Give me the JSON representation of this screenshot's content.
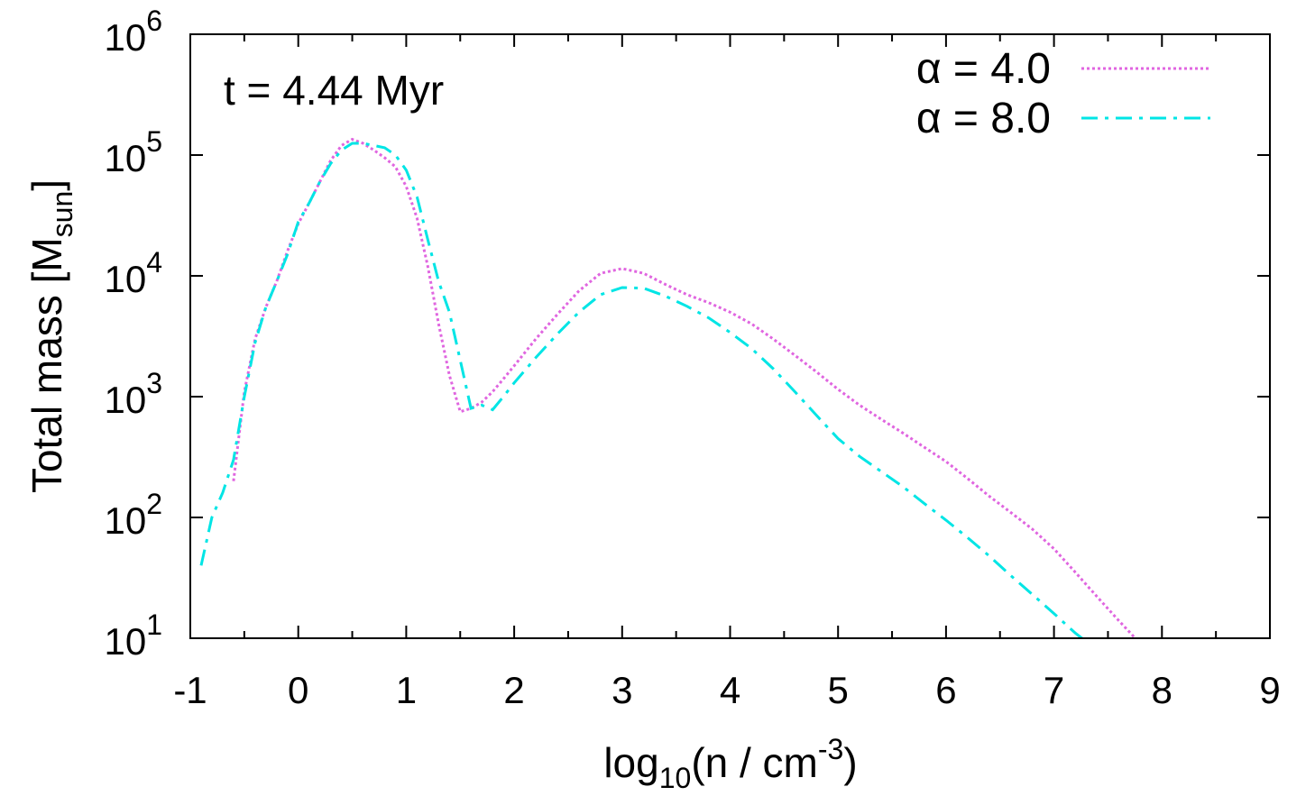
{
  "chart_data": {
    "type": "line",
    "annotation": "t = 4.44 Myr",
    "xlabel": {
      "base": "log",
      "sub": "10",
      "main": "(n / cm",
      "sup": "-3",
      "close": ")"
    },
    "ylabel": {
      "main": "Total mass [M",
      "sub": "sun",
      "close": "]"
    },
    "xlim": [
      -1,
      9
    ],
    "ylim": [
      10,
      1000000
    ],
    "yscale": "log",
    "x_ticks": [
      "-1",
      "0",
      "1",
      "2",
      "3",
      "4",
      "5",
      "6",
      "7",
      "8",
      "9"
    ],
    "y_ticks": [
      {
        "base": "10",
        "exp": "1"
      },
      {
        "base": "10",
        "exp": "2"
      },
      {
        "base": "10",
        "exp": "3"
      },
      {
        "base": "10",
        "exp": "4"
      },
      {
        "base": "10",
        "exp": "5"
      },
      {
        "base": "10",
        "exp": "6"
      }
    ],
    "legend_position": "top-right",
    "series": [
      {
        "name": "α = 4.0",
        "color": "#e066e0",
        "style": "dotted",
        "x": [
          -0.6,
          -0.5,
          -0.4,
          -0.3,
          -0.2,
          -0.1,
          0.0,
          0.1,
          0.2,
          0.3,
          0.4,
          0.5,
          0.6,
          0.7,
          0.8,
          0.9,
          1.0,
          1.1,
          1.2,
          1.3,
          1.4,
          1.5,
          1.6,
          1.7,
          1.8,
          1.9,
          2.0,
          2.2,
          2.4,
          2.6,
          2.8,
          3.0,
          3.2,
          3.4,
          3.6,
          3.8,
          4.0,
          4.2,
          4.4,
          4.6,
          4.8,
          5.0,
          5.2,
          5.4,
          5.6,
          5.8,
          6.0,
          6.2,
          6.4,
          6.6,
          6.8,
          7.0,
          7.2,
          7.4,
          7.6,
          7.8
        ],
        "y": [
          200,
          1100,
          3000,
          5500,
          9000,
          16000,
          27000,
          40000,
          60000,
          90000,
          120000,
          135000,
          125000,
          110000,
          95000,
          80000,
          55000,
          30000,
          12000,
          4000,
          1500,
          750,
          800,
          900,
          1100,
          1400,
          1800,
          3000,
          4800,
          7500,
          10500,
          11500,
          10500,
          8500,
          7000,
          6000,
          5000,
          4000,
          3000,
          2200,
          1600,
          1150,
          850,
          650,
          500,
          380,
          290,
          210,
          150,
          110,
          80,
          55,
          35,
          22,
          14,
          9
        ]
      },
      {
        "name": "α = 8.0",
        "color": "#00e5e5",
        "style": "dashdot",
        "x": [
          -0.9,
          -0.8,
          -0.7,
          -0.6,
          -0.5,
          -0.4,
          -0.3,
          -0.2,
          -0.1,
          0.0,
          0.1,
          0.2,
          0.3,
          0.4,
          0.5,
          0.6,
          0.7,
          0.8,
          0.9,
          1.0,
          1.1,
          1.2,
          1.3,
          1.4,
          1.5,
          1.6,
          1.7,
          1.8,
          1.9,
          2.0,
          2.2,
          2.4,
          2.6,
          2.8,
          3.0,
          3.2,
          3.4,
          3.6,
          3.8,
          4.0,
          4.2,
          4.4,
          4.6,
          4.8,
          5.0,
          5.2,
          5.4,
          5.6,
          5.8,
          6.0,
          6.2,
          6.4,
          6.6,
          6.8,
          7.0,
          7.2,
          7.4
        ],
        "y": [
          40,
          100,
          160,
          300,
          1000,
          2800,
          5500,
          9000,
          15000,
          28000,
          40000,
          60000,
          85000,
          110000,
          125000,
          125000,
          120000,
          115000,
          100000,
          75000,
          45000,
          20000,
          9000,
          5000,
          2000,
          800,
          850,
          780,
          1000,
          1300,
          2100,
          3300,
          5000,
          7000,
          8000,
          7900,
          6800,
          5600,
          4500,
          3400,
          2500,
          1700,
          1100,
          700,
          450,
          320,
          240,
          180,
          130,
          95,
          68,
          48,
          33,
          23,
          16,
          11,
          8
        ]
      }
    ]
  }
}
